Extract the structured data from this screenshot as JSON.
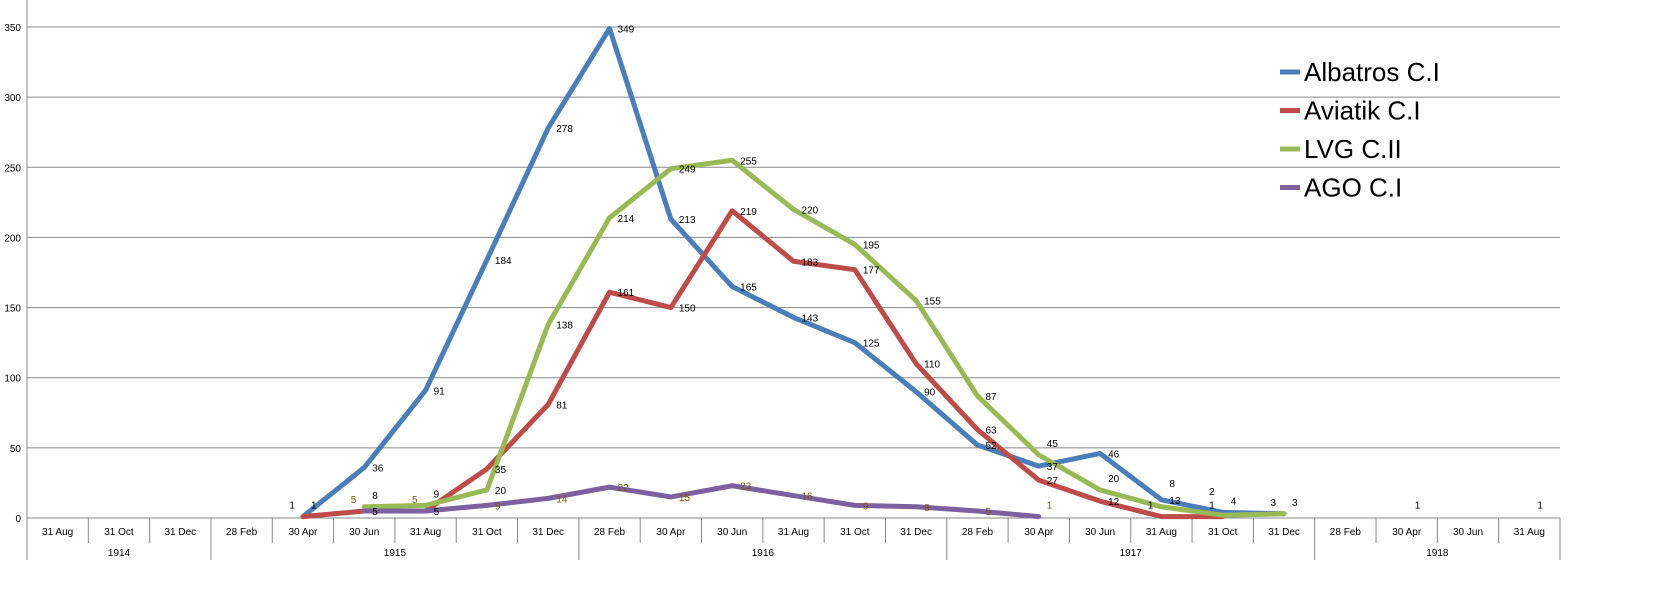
{
  "chart_data": {
    "type": "line",
    "title": "",
    "xlabel": "",
    "ylabel": "",
    "ylim": [
      0,
      350
    ],
    "yticks": [
      0,
      50,
      100,
      150,
      200,
      250,
      300,
      350
    ],
    "grid": true,
    "legend_position": "right",
    "categories": [
      "31 Aug",
      "31 Oct",
      "31 Dec",
      "28 Feb",
      "30 Apr",
      "30 Jun",
      "31 Aug",
      "31 Oct",
      "31 Dec",
      "28 Feb",
      "30 Apr",
      "30 Jun",
      "31 Aug",
      "31 Oct",
      "31 Dec",
      "28 Feb",
      "30 Apr",
      "30 Jun",
      "31 Aug",
      "31 Oct",
      "31 Dec",
      "28 Feb",
      "30 Apr",
      "30 Jun",
      "31 Aug"
    ],
    "year_groups": [
      {
        "label": "1914",
        "count": 3
      },
      {
        "label": "1915",
        "count": 6
      },
      {
        "label": "1916",
        "count": 6
      },
      {
        "label": "1917",
        "count": 6
      },
      {
        "label": "1918",
        "count": 4
      }
    ],
    "series": [
      {
        "name": "Albatros C.I",
        "color": "#4a7ebb",
        "label_color": "#000000",
        "values": [
          null,
          null,
          null,
          null,
          1,
          36,
          91,
          184,
          278,
          349,
          213,
          165,
          143,
          125,
          90,
          52,
          37,
          46,
          13,
          4,
          3,
          null,
          1,
          null,
          1
        ]
      },
      {
        "name": "Aviatik C.I",
        "color": "#be4b48",
        "label_color": "#000000",
        "values": [
          null,
          null,
          null,
          null,
          1,
          5,
          5,
          35,
          81,
          161,
          150,
          219,
          183,
          177,
          110,
          63,
          27,
          12,
          1,
          1,
          null,
          null,
          null,
          null,
          null
        ]
      },
      {
        "name": "LVG C.II",
        "color": "#98b954",
        "label_color": "#000000",
        "values": [
          null,
          null,
          null,
          null,
          null,
          8,
          9,
          20,
          138,
          214,
          249,
          255,
          220,
          195,
          155,
          87,
          45,
          20,
          8,
          2,
          3,
          null,
          null,
          null,
          null
        ]
      },
      {
        "name": "AGO C.I",
        "color": "#7d60a0",
        "label_color": "#7a5a00",
        "values": [
          null,
          null,
          null,
          null,
          null,
          5,
          5,
          9,
          14,
          22,
          15,
          23,
          16,
          9,
          8,
          5,
          1,
          null,
          null,
          null,
          null,
          null,
          null,
          null,
          null
        ]
      }
    ]
  }
}
